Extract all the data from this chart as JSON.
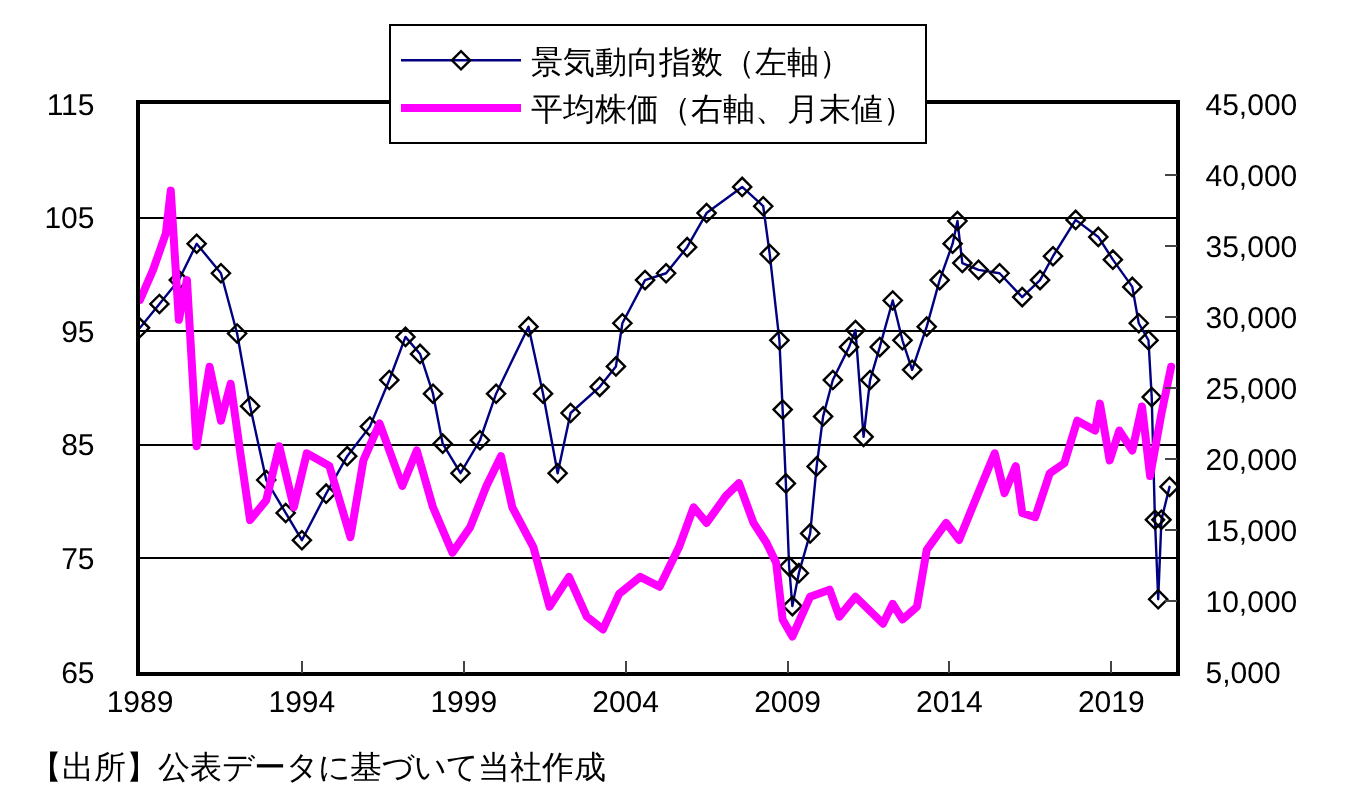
{
  "chart_data": {
    "type": "line",
    "xlim": [
      1989,
      2021
    ],
    "xticks": [
      1989,
      1994,
      1999,
      2004,
      2009,
      2014,
      2019
    ],
    "ylim": [
      65,
      115
    ],
    "yticks": [
      65,
      75,
      85,
      95,
      105,
      115
    ],
    "y2lim": [
      5000,
      45000
    ],
    "y2ticks": [
      {
        "value": 5000,
        "label": "5,000"
      },
      {
        "value": 10000,
        "label": "10,000"
      },
      {
        "value": 15000,
        "label": "15,000"
      },
      {
        "value": 20000,
        "label": "20,000"
      },
      {
        "value": 25000,
        "label": "25,000"
      },
      {
        "value": 30000,
        "label": "30,000"
      },
      {
        "value": 35000,
        "label": "35,000"
      },
      {
        "value": 40000,
        "label": "40,000"
      },
      {
        "value": 45000,
        "label": "45,000"
      }
    ],
    "grid": "y",
    "legend": "top",
    "annotations": [
      "【出所】公表データに基づいて当社作成"
    ],
    "series": [
      {
        "name": "景気動向指数（左軸）",
        "color": "#000080",
        "marker": "diamond",
        "x": [
          1989.0,
          1989.6,
          1990.2,
          1990.75,
          1991.5,
          1992.0,
          1992.4,
          1992.9,
          1993.5,
          1994.0,
          1994.75,
          1995.4,
          1996.1,
          1996.7,
          1997.2,
          1997.65,
          1998.05,
          1998.35,
          1998.9,
          1999.5,
          2000.0,
          2001.0,
          2001.45,
          2001.9,
          2002.3,
          2003.2,
          2003.7,
          2003.9,
          2004.6,
          2005.25,
          2005.9,
          2006.5,
          2007.6,
          2008.25,
          2008.45,
          2008.75,
          2008.85,
          2008.95,
          2009.05,
          2009.15,
          2009.35,
          2009.7,
          2009.9,
          2010.1,
          2010.4,
          2010.9,
          2011.1,
          2011.35,
          2011.55,
          2011.85,
          2012.25,
          2012.55,
          2012.85,
          2013.3,
          2013.7,
          2014.1,
          2014.25,
          2014.4,
          2014.9,
          2015.55,
          2016.25,
          2016.8,
          2017.2,
          2017.9,
          2018.6,
          2019.05,
          2019.65,
          2019.85,
          2020.15,
          2020.25,
          2020.35,
          2020.45,
          2020.55,
          2020.8
        ],
        "values": [
          95.3,
          97.4,
          99.5,
          102.7,
          100.1,
          94.8,
          88.4,
          81.9,
          79.0,
          76.6,
          80.7,
          84.0,
          86.6,
          90.7,
          94.5,
          93.0,
          89.5,
          85.1,
          82.5,
          85.4,
          89.5,
          95.4,
          89.5,
          82.5,
          87.8,
          90.1,
          91.9,
          95.7,
          99.5,
          100.1,
          102.4,
          105.4,
          107.7,
          106.0,
          101.8,
          94.2,
          88.1,
          81.6,
          74.3,
          70.8,
          73.7,
          77.2,
          83.1,
          87.5,
          90.7,
          93.6,
          95.1,
          85.7,
          90.7,
          93.6,
          97.7,
          94.2,
          91.6,
          95.4,
          99.5,
          102.7,
          104.7,
          101.0,
          100.4,
          100.1,
          98.0,
          99.5,
          101.6,
          104.8,
          103.3,
          101.3,
          98.9,
          95.7,
          94.2,
          89.2,
          78.4,
          71.4,
          78.4,
          81.3
        ]
      },
      {
        "name": "平均株価（右軸、月末値）",
        "color": "#ff00ff",
        "axis": "y2",
        "marker": "none",
        "x": [
          1989.0,
          1989.4,
          1989.8,
          1989.95,
          1990.2,
          1990.45,
          1990.75,
          1991.15,
          1991.5,
          1991.8,
          1992.1,
          1992.4,
          1992.9,
          1993.3,
          1993.75,
          1994.15,
          1994.85,
          1995.5,
          1995.9,
          1996.4,
          1997.1,
          1997.55,
          1998.05,
          1998.65,
          1999.2,
          1999.7,
          2000.15,
          2000.5,
          2001.15,
          2001.65,
          2002.25,
          2002.8,
          2003.3,
          2003.8,
          2004.45,
          2005.05,
          2005.65,
          2006.1,
          2006.5,
          2007.1,
          2007.5,
          2007.95,
          2008.35,
          2008.65,
          2008.85,
          2009.15,
          2009.7,
          2010.3,
          2010.6,
          2011.1,
          2011.95,
          2012.25,
          2012.55,
          2013.0,
          2013.3,
          2013.9,
          2014.3,
          2014.8,
          2015.4,
          2015.7,
          2016.05,
          2016.25,
          2016.65,
          2017.1,
          2017.55,
          2017.95,
          2018.5,
          2018.65,
          2018.95,
          2019.25,
          2019.65,
          2019.95,
          2020.2,
          2020.55,
          2020.85
        ],
        "values": [
          31200,
          33300,
          35900,
          38900,
          29800,
          32600,
          20900,
          26500,
          22700,
          25300,
          20400,
          15700,
          17100,
          20900,
          16600,
          20400,
          19500,
          14500,
          19900,
          22500,
          18100,
          20600,
          16600,
          13400,
          15200,
          18100,
          20200,
          16600,
          13800,
          9600,
          11700,
          8900,
          8000,
          10500,
          11700,
          11000,
          13800,
          16600,
          15500,
          17400,
          18300,
          15500,
          14100,
          12700,
          8700,
          7500,
          10300,
          10800,
          8900,
          10300,
          8400,
          9800,
          8700,
          9600,
          13600,
          15500,
          14300,
          17100,
          20400,
          17600,
          19500,
          16200,
          15900,
          19000,
          19700,
          22700,
          22000,
          23900,
          19900,
          22000,
          20600,
          23700,
          18800,
          23200,
          26500
        ]
      }
    ]
  }
}
